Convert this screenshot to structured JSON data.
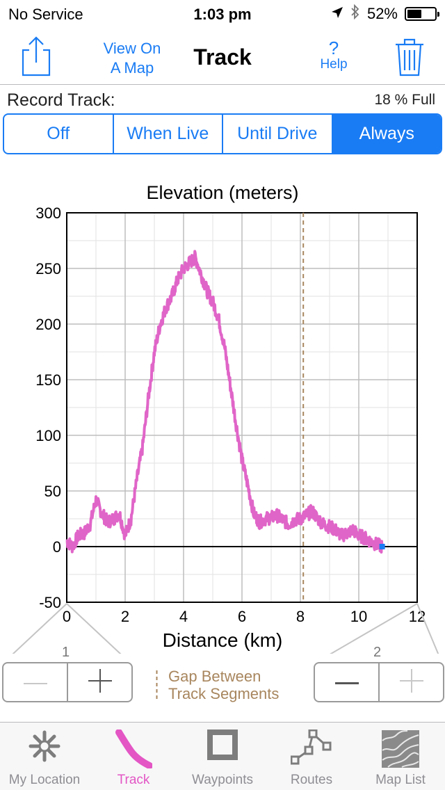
{
  "status_bar": {
    "carrier": "No Service",
    "time": "1:03 pm",
    "battery": "52%",
    "battery_level": 0.52
  },
  "nav": {
    "view_map_line1": "View On",
    "view_map_line2": "A Map",
    "title": "Track",
    "help_glyph": "?",
    "help_label": "Help"
  },
  "record": {
    "label": "Record Track:",
    "fill_status": "18 % Full",
    "options": [
      "Off",
      "When Live",
      "Until Drive",
      "Always"
    ],
    "selected": "Always"
  },
  "chart_data": {
    "type": "line",
    "title": "Elevation (meters)",
    "xlabel": "Distance (km)",
    "ylabel": "",
    "xlim": [
      0,
      12
    ],
    "ylim": [
      -50,
      300
    ],
    "xticks": [
      0,
      2,
      4,
      6,
      8,
      10,
      12
    ],
    "yticks": [
      -50,
      0,
      50,
      100,
      150,
      200,
      250,
      300
    ],
    "grid": true,
    "series": [
      {
        "color": "#e065c8",
        "x": [
          0,
          0.2,
          0.4,
          0.6,
          0.8,
          1.0,
          1.2,
          1.4,
          1.6,
          1.8,
          2.0,
          2.2,
          2.4,
          2.6,
          2.8,
          3.0,
          3.2,
          3.4,
          3.6,
          3.8,
          4.0,
          4.2,
          4.4,
          4.6,
          4.8,
          5.0,
          5.2,
          5.4,
          5.6,
          5.8,
          6.0,
          6.2,
          6.4,
          6.6,
          6.8,
          7.0,
          7.2,
          7.4,
          7.6,
          7.8,
          8.0,
          8.2,
          8.4,
          8.6,
          8.8,
          9.0,
          9.2,
          9.4,
          9.6,
          9.8,
          10.0,
          10.2,
          10.4,
          10.6,
          10.8
        ],
        "y": [
          5,
          0,
          10,
          12,
          20,
          42,
          30,
          22,
          25,
          30,
          10,
          25,
          60,
          90,
          135,
          175,
          200,
          215,
          225,
          240,
          250,
          255,
          260,
          245,
          230,
          220,
          205,
          180,
          145,
          110,
          78,
          55,
          30,
          22,
          25,
          26,
          28,
          24,
          20,
          24,
          25,
          28,
          32,
          25,
          20,
          18,
          15,
          10,
          12,
          15,
          10,
          8,
          5,
          2,
          0
        ]
      }
    ],
    "current_position": {
      "x": 10.8,
      "y": 0,
      "color": "#1a7cf4"
    },
    "segment_gap": {
      "x": 8.1,
      "color": "#a8865e"
    }
  },
  "zoom": {
    "left_number": "1",
    "right_number": "2",
    "gap_legend_line1": "Gap Between",
    "gap_legend_line2": "Track Segments"
  },
  "tabbar": {
    "items": [
      {
        "label": "My Location",
        "icon": "asterisk-icon"
      },
      {
        "label": "Track",
        "icon": "track-icon"
      },
      {
        "label": "Waypoints",
        "icon": "square-icon"
      },
      {
        "label": "Routes",
        "icon": "route-icon"
      },
      {
        "label": "Map List",
        "icon": "map-tile-icon"
      }
    ],
    "active": "Track"
  },
  "colors": {
    "accent": "#1a7cf4",
    "track": "#e065c8",
    "gap": "#a8865e",
    "inactive": "#8e8e93"
  }
}
